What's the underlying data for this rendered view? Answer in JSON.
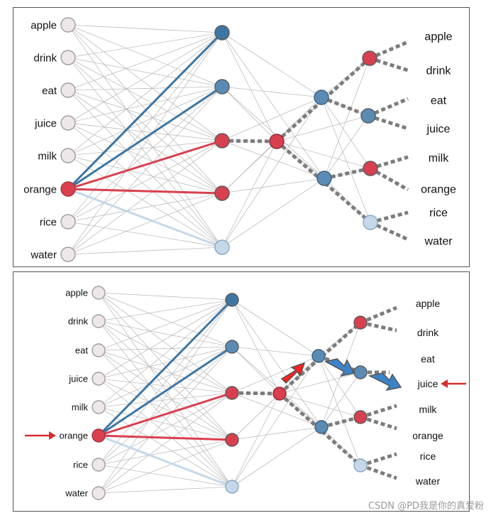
{
  "words": [
    "apple",
    "drink",
    "eat",
    "juice",
    "milk",
    "orange",
    "rice",
    "water"
  ],
  "colors": {
    "input_node_fill": "#efe6e9",
    "input_node_stroke": "#9e9e9e",
    "red": "#d9404f",
    "blue_dark": "#3e76a3",
    "blue_mid": "#5a8bb5",
    "blue_light": "#c4d8ea",
    "edge_gray": "#bdbdbd",
    "dashed": "#7c7c7c",
    "arrow_red": "#ff1f1f",
    "arrow_blue": "#3c82c8",
    "pointer_red": "#d32f2f"
  },
  "top_panel": {
    "input_words": [
      "apple",
      "drink",
      "eat",
      "juice",
      "milk",
      "orange",
      "rice",
      "water"
    ],
    "output_words": [
      "apple",
      "drink",
      "eat",
      "juice",
      "milk",
      "orange",
      "rice",
      "water"
    ],
    "active_input": "orange"
  },
  "bottom_panel": {
    "input_words": [
      "apple",
      "drink",
      "eat",
      "juice",
      "milk",
      "orange",
      "rice",
      "water"
    ],
    "output_words": [
      "apple",
      "drink",
      "eat",
      "juice",
      "milk",
      "orange",
      "rice",
      "water"
    ],
    "active_input": "orange",
    "predicted_output": "juice"
  },
  "watermark": "CSDN @PD我是你的真爱粉"
}
